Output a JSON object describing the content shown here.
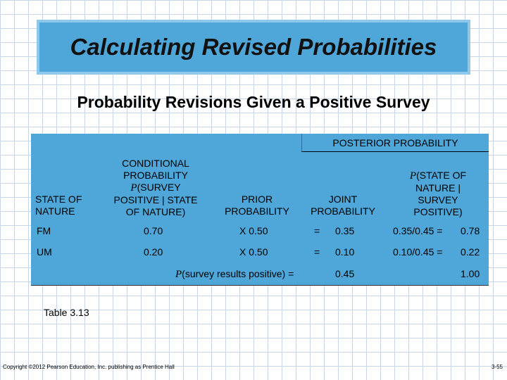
{
  "title": "Calculating Revised Probabilities",
  "subtitle": "Probability Revisions Given a Positive Survey",
  "table": {
    "posterior_header": "POSTERIOR PROBABILITY",
    "headers": {
      "state": [
        "STATE OF",
        "NATURE"
      ],
      "conditional": {
        "line1": "CONDITIONAL",
        "line2": "PROBABILITY",
        "line3_p": "P",
        "line3_rest": "(SURVEY",
        "line4": "POSITIVE | STATE",
        "line5": "OF NATURE)"
      },
      "prior": [
        "PRIOR",
        "PROBABILITY"
      ],
      "joint": [
        "JOINT",
        "PROBABILITY"
      ],
      "posterior": {
        "line1_p": "P",
        "line1_rest": "(STATE OF",
        "line2": "NATURE |",
        "line3": "SURVEY",
        "line4": "POSITIVE)"
      }
    },
    "rows": [
      {
        "state": "FM",
        "conditional": "0.70",
        "prior": "X 0.50",
        "eq": "=",
        "joint": "0.35",
        "posterior_calc": "0.35/0.45 =",
        "posterior": "0.78"
      },
      {
        "state": "UM",
        "conditional": "0.20",
        "prior": "X 0.50",
        "eq": "=",
        "joint": "0.10",
        "posterior_calc": "0.10/0.45 =",
        "posterior": "0.22"
      }
    ],
    "total": {
      "label_p": "P",
      "label_rest": "(survey results positive) =",
      "joint": "0.45",
      "posterior": "1.00"
    }
  },
  "caption": "Table 3.13",
  "footer": {
    "copyright": "Copyright ©2012 Pearson Education, Inc. publishing as Prentice Hall",
    "page": "3-55"
  }
}
